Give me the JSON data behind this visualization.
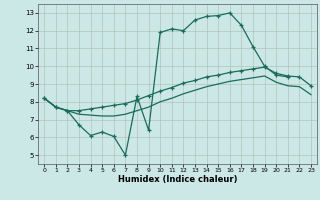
{
  "xlabel": "Humidex (Indice chaleur)",
  "xlim": [
    -0.5,
    23.5
  ],
  "ylim": [
    4.5,
    13.5
  ],
  "xticks": [
    0,
    1,
    2,
    3,
    4,
    5,
    6,
    7,
    8,
    9,
    10,
    11,
    12,
    13,
    14,
    15,
    16,
    17,
    18,
    19,
    20,
    21,
    22,
    23
  ],
  "yticks": [
    5,
    6,
    7,
    8,
    9,
    10,
    11,
    12,
    13
  ],
  "background_color": "#cce8e6",
  "line_color": "#1a6b5a",
  "line1_x": [
    0,
    1,
    2,
    3,
    4,
    5,
    6,
    7,
    8,
    9,
    10,
    11,
    12,
    13,
    14,
    15,
    16,
    17,
    18,
    19,
    20,
    21
  ],
  "line1_y": [
    8.2,
    7.7,
    7.5,
    6.7,
    6.1,
    6.3,
    6.05,
    5.0,
    8.3,
    6.4,
    11.9,
    12.1,
    12.0,
    12.6,
    12.8,
    12.85,
    13.0,
    12.3,
    11.1,
    10.0,
    9.5,
    9.4
  ],
  "line2_x": [
    0,
    1,
    2,
    3,
    4,
    5,
    6,
    7,
    8,
    9,
    10,
    11,
    12,
    13,
    14,
    15,
    16,
    17,
    18,
    19,
    20,
    21,
    22,
    23
  ],
  "line2_y": [
    8.2,
    7.7,
    7.5,
    7.5,
    7.6,
    7.7,
    7.8,
    7.9,
    8.1,
    8.35,
    8.6,
    8.8,
    9.05,
    9.2,
    9.4,
    9.5,
    9.65,
    9.75,
    9.85,
    9.95,
    9.6,
    9.45,
    9.4,
    8.9
  ],
  "line3_x": [
    0,
    1,
    2,
    3,
    4,
    5,
    6,
    7,
    8,
    9,
    10,
    11,
    12,
    13,
    14,
    15,
    16,
    17,
    18,
    19,
    20,
    21,
    22,
    23
  ],
  "line3_y": [
    8.2,
    7.7,
    7.5,
    7.3,
    7.25,
    7.2,
    7.2,
    7.3,
    7.5,
    7.7,
    8.0,
    8.2,
    8.45,
    8.65,
    8.85,
    9.0,
    9.15,
    9.25,
    9.35,
    9.45,
    9.1,
    8.9,
    8.85,
    8.4
  ]
}
